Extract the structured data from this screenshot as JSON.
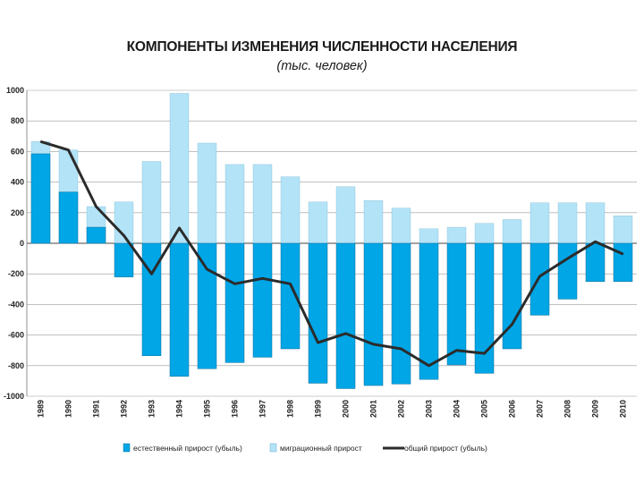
{
  "chart_data": {
    "type": "bar",
    "title": "КОМПОНЕНТЫ ИЗМЕНЕНИЯ ЧИСЛЕННОСТИ НАСЕЛЕНИЯ",
    "subtitle": "(тыс. человек)",
    "categories": [
      "1989",
      "1990",
      "1991",
      "1992",
      "1993",
      "1994",
      "1995",
      "1996",
      "1997",
      "1998",
      "1999",
      "2000",
      "2001",
      "2002",
      "2003",
      "2004",
      "2005",
      "2006",
      "2007",
      "2008",
      "2009",
      "2010"
    ],
    "series": [
      {
        "name": "естественный прирост (убыль)",
        "type": "bar",
        "color": "#00a6e6",
        "values": [
          585,
          335,
          105,
          -220,
          -735,
          -870,
          -820,
          -780,
          -745,
          -690,
          -915,
          -950,
          -930,
          -920,
          -890,
          -795,
          -850,
          -690,
          -470,
          -365,
          -250,
          -250
        ]
      },
      {
        "name": "миграционный прирост",
        "type": "bar",
        "color": "#b3e3f7",
        "values": [
          665,
          610,
          240,
          270,
          535,
          980,
          655,
          515,
          515,
          435,
          270,
          370,
          280,
          230,
          95,
          105,
          130,
          155,
          265,
          265,
          265,
          180
        ]
      },
      {
        "name": "общий прирост (убыль)",
        "type": "line",
        "color": "#2b2b2b",
        "values": [
          665,
          610,
          240,
          50,
          -200,
          100,
          -170,
          -265,
          -230,
          -265,
          -650,
          -590,
          -660,
          -690,
          -800,
          -700,
          -720,
          -530,
          -215,
          -100,
          10,
          -70
        ]
      }
    ],
    "yticks": [
      1000,
      800,
      600,
      400,
      200,
      0,
      -200,
      -400,
      -600,
      -800,
      -1000
    ],
    "ylim": [
      -1000,
      1000
    ],
    "grid": true,
    "legend_position": "bottom"
  }
}
